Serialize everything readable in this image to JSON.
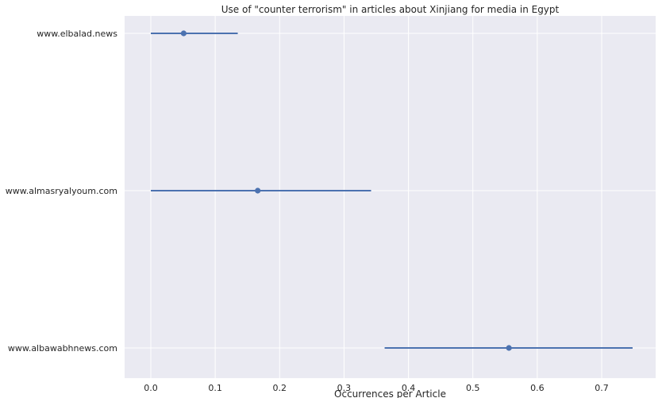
{
  "chart_data": {
    "type": "point-interval",
    "title": "Use of \"counter terrorism\" in articles about Xinjiang for media in Egypt",
    "xlabel": "Occurrences per Article",
    "ylabel": "",
    "xlim": [
      -0.04,
      0.83
    ],
    "xticks": [
      "0.0",
      "0.1",
      "0.2",
      "0.3",
      "0.4",
      "0.5",
      "0.6",
      "0.7"
    ],
    "grid": true,
    "categories": [
      "www.elbalad.news",
      "www.almasryalyoum.com",
      "www.albawabhnews.com"
    ],
    "points": [
      {
        "label": "www.elbalad.news",
        "value": 0.051,
        "ci": [
          0.0,
          0.135
        ]
      },
      {
        "label": "www.almasryalyoum.com",
        "value": 0.166,
        "ci": [
          0.0,
          0.342
        ]
      },
      {
        "label": "www.albawabhnews.com",
        "value": 0.556,
        "ci": [
          0.363,
          0.748
        ]
      }
    ],
    "colors": {
      "background": "#eaeaf2",
      "grid": "#ffffff",
      "series": "#4c72b0"
    }
  }
}
